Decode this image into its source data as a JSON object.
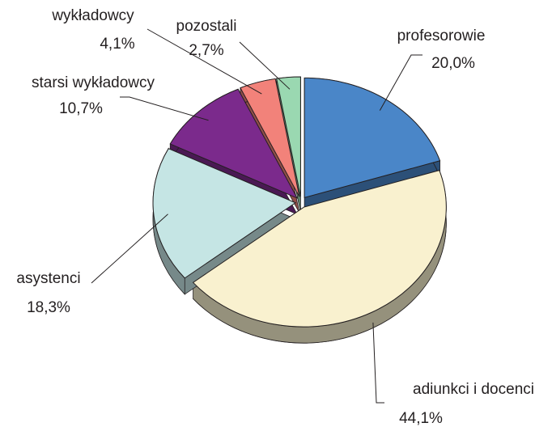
{
  "chart_data": {
    "type": "pie",
    "categories": [
      "profesorowie",
      "adiunkci i docenci",
      "asystenci",
      "starsi wykładowcy",
      "wykładowcy",
      "pozostali"
    ],
    "values": [
      20.0,
      44.1,
      18.3,
      10.7,
      4.1,
      2.7
    ],
    "value_labels": [
      "20,0%",
      "44,1%",
      "18,3%",
      "10,7%",
      "4,1%",
      "2,7%"
    ],
    "colors": [
      "#4a86c8",
      "#f9f1cf",
      "#c5e5e4",
      "#7b2a8c",
      "#f2827a",
      "#9ad8b1"
    ]
  }
}
